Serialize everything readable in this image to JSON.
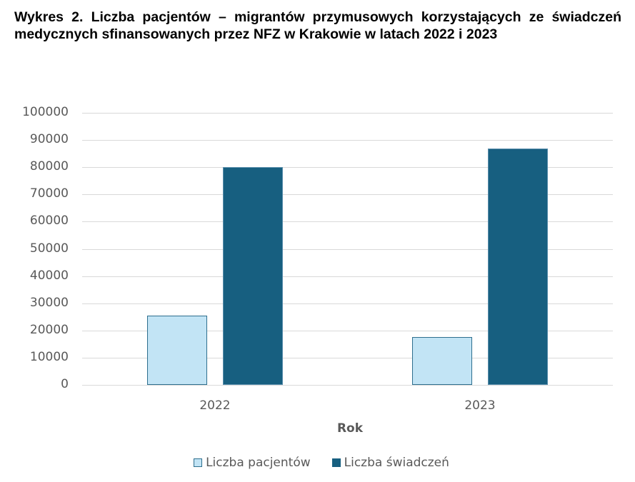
{
  "title": "Wykres 2. Liczba pacjentów – migrantów przymusowych korzystających ze świadczeń medycznych sfinansowanych przez NFZ w Krakowie w latach 2022 i 2023",
  "chart_data": {
    "type": "bar",
    "title": "Wykres 2. Liczba pacjentów – migrantów przymusowych korzystających ze świadczeń medycznych sfinansowanych przez NFZ w Krakowie w latach 2022 i 2023",
    "categories": [
      "2022",
      "2023"
    ],
    "series": [
      {
        "name": "Liczba pacjentów",
        "values": [
          25400,
          17500
        ],
        "color": "#c2e4f5",
        "border": "#2e6f8e"
      },
      {
        "name": "Liczba świadczeń",
        "values": [
          80000,
          86900
        ],
        "color": "#175f80",
        "border": "#5a8eac"
      }
    ],
    "xlabel": "Rok",
    "ylabel": "",
    "ylim": [
      0,
      100000
    ],
    "yticks": [
      "0",
      "10000",
      "20000",
      "30000",
      "40000",
      "50000",
      "60000",
      "70000",
      "80000",
      "90000",
      "100000"
    ],
    "grid": true,
    "legend_position": "bottom"
  }
}
